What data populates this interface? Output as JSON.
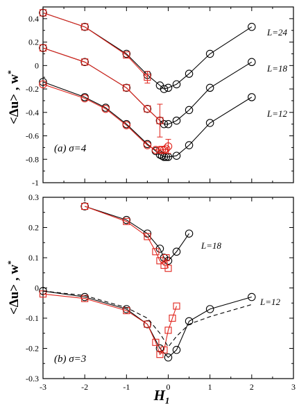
{
  "figure": {
    "xlabel": "H",
    "xlabel_sub": "1",
    "ylabel_main": "<Δu> , w",
    "ylabel_sup": "*"
  },
  "chart_data": [
    {
      "type": "line",
      "panel_label": "(a) σ=4",
      "ylabel": "<Δu> , w*",
      "xlabel": "H1",
      "xlim": [
        -3,
        3
      ],
      "ylim": [
        -1,
        0.5
      ],
      "xticks": [
        -3,
        -2,
        -1,
        0,
        1,
        2,
        3
      ],
      "xtick_labels": [
        "-3",
        "-2",
        "-1",
        "0",
        "1",
        "2",
        "3"
      ],
      "yticks": [
        -1,
        -0.8,
        -0.6,
        -0.4,
        -0.2,
        0,
        0.2,
        0.4
      ],
      "ytick_labels": [
        "-1",
        "-0.8",
        "-0.6",
        "-0.4",
        "-0.2",
        "0",
        "0.2",
        "0.4"
      ],
      "curve_labels": [
        "L=24",
        "L=18",
        "L=12"
      ],
      "colors": {
        "black": "#000000",
        "red": "#e0241c"
      },
      "series": [
        {
          "marker": "circle",
          "color": "black",
          "x": [
            -3,
            -2,
            -1,
            -0.5,
            -0.2,
            -0.1,
            0,
            0.2,
            0.5,
            1,
            2
          ],
          "y": [
            0.45,
            0.33,
            0.1,
            -0.08,
            -0.17,
            -0.2,
            -0.19,
            -0.16,
            -0.07,
            0.1,
            0.33
          ]
        },
        {
          "marker": "square",
          "color": "red",
          "x": [
            -3,
            -2,
            -1,
            -0.5
          ],
          "y": [
            0.45,
            0.33,
            0.09,
            -0.1
          ],
          "err": [
            0,
            0,
            0,
            0.05
          ]
        },
        {
          "marker": "circle",
          "color": "black",
          "x": [
            -3,
            -2,
            -1,
            -0.5,
            -0.2,
            -0.1,
            0,
            0.2,
            0.5,
            1,
            2
          ],
          "y": [
            0.15,
            0.03,
            -0.19,
            -0.37,
            -0.47,
            -0.5,
            -0.5,
            -0.47,
            -0.38,
            -0.19,
            0.03
          ]
        },
        {
          "marker": "square",
          "color": "red",
          "x": [
            -3,
            -2,
            -1,
            -0.5,
            -0.2
          ],
          "y": [
            0.15,
            0.03,
            -0.19,
            -0.37,
            -0.47
          ],
          "err": [
            0,
            0,
            0,
            0,
            0.14
          ]
        },
        {
          "marker": "circle",
          "color": "black",
          "x": [
            -3,
            -2,
            -1.5,
            -1,
            -0.5,
            -0.3,
            -0.2,
            -0.15,
            -0.1,
            -0.05,
            0,
            0.2,
            0.5,
            1,
            2
          ],
          "y": [
            -0.14,
            -0.27,
            -0.36,
            -0.5,
            -0.67,
            -0.73,
            -0.76,
            -0.77,
            -0.78,
            -0.78,
            -0.78,
            -0.77,
            -0.68,
            -0.49,
            -0.27
          ]
        },
        {
          "marker": "circle",
          "color": "red",
          "x": [
            -3,
            -2,
            -1.5,
            -1,
            -0.5,
            -0.3,
            -0.2,
            -0.15,
            -0.1,
            -0.05,
            0
          ],
          "y": [
            -0.16,
            -0.28,
            -0.37,
            -0.51,
            -0.68,
            -0.72,
            -0.72,
            -0.72,
            -0.72,
            -0.71,
            -0.69
          ],
          "err": [
            0,
            0,
            0,
            0,
            0,
            0,
            0,
            0,
            0,
            0,
            0.06
          ]
        }
      ]
    },
    {
      "type": "line",
      "panel_label": "(b) σ=3",
      "ylabel": "<Δu> , w*",
      "xlabel": "H1",
      "xlim": [
        -3,
        3
      ],
      "ylim": [
        -0.3,
        0.3
      ],
      "xticks": [
        -3,
        -2,
        -1,
        0,
        1,
        2,
        3
      ],
      "xtick_labels": [
        "-3",
        "-2",
        "-1",
        "0",
        "1",
        "2",
        "3"
      ],
      "yticks": [
        -0.3,
        -0.2,
        -0.1,
        0,
        0.1,
        0.2,
        0.3
      ],
      "ytick_labels": [
        "-0.3",
        "-0.2",
        "-0.1",
        "0",
        "0.1",
        "0.2",
        "0.3"
      ],
      "curve_labels": [
        "L=18",
        "L=12"
      ],
      "colors": {
        "black": "#000000",
        "red": "#e0241c"
      },
      "series": [
        {
          "marker": "circle",
          "color": "black",
          "x": [
            -2,
            -1,
            -0.5,
            -0.2,
            -0.1,
            0,
            0.2,
            0.5
          ],
          "y": [
            0.27,
            0.225,
            0.18,
            0.13,
            0.1,
            0.09,
            0.12,
            0.18
          ]
        },
        {
          "marker": "square",
          "color": "red",
          "x": [
            -2,
            -1,
            -0.5,
            -0.3,
            -0.2,
            -0.1,
            -0.05,
            0
          ],
          "y": [
            0.27,
            0.22,
            0.17,
            0.12,
            0.09,
            0.075,
            0.1,
            0.065
          ]
        },
        {
          "marker": "circle",
          "color": "black",
          "x": [
            -3,
            -2,
            -1,
            -0.5,
            -0.2,
            0,
            0.2,
            0.5,
            1,
            2
          ],
          "y": [
            -0.01,
            -0.03,
            -0.07,
            -0.12,
            -0.2,
            -0.23,
            -0.205,
            -0.11,
            -0.07,
            -0.03
          ]
        },
        {
          "marker": "square",
          "color": "red",
          "x": [
            -3,
            -2,
            -1,
            -0.5,
            -0.3,
            -0.2,
            -0.1,
            0,
            0.1,
            0.2
          ],
          "y": [
            -0.02,
            -0.035,
            -0.075,
            -0.12,
            -0.18,
            -0.22,
            -0.205,
            -0.14,
            -0.1,
            -0.06
          ]
        },
        {
          "marker": "none",
          "style": "dashed",
          "color": "black",
          "x": [
            -3,
            -2,
            -1,
            -0.5,
            -0.2,
            0,
            0.2,
            0.5,
            1,
            2
          ],
          "y": [
            -0.01,
            -0.025,
            -0.065,
            -0.1,
            -0.15,
            -0.195,
            -0.16,
            -0.12,
            -0.095,
            -0.055
          ]
        }
      ]
    }
  ]
}
